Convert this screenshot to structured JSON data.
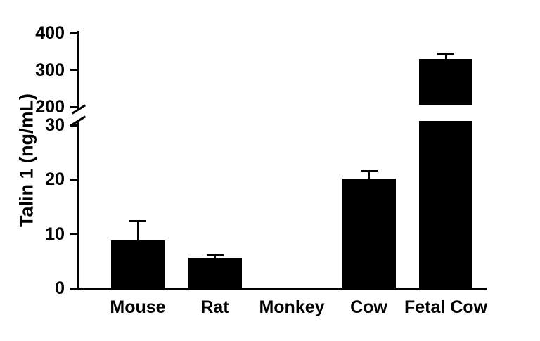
{
  "chart_data": {
    "type": "bar",
    "title": "",
    "ylabel": "Talin 1 (ng/mL)",
    "xlabel": "",
    "categories": [
      "Mouse",
      "Rat",
      "Monkey",
      "Cow",
      "Fetal Cow"
    ],
    "values": [
      8.8,
      5.5,
      0,
      20.2,
      330
    ],
    "errors_upper": [
      3.5,
      0.7,
      0,
      1.3,
      13
    ],
    "bar_color": "#000000",
    "axis_color": "#000000",
    "grid": false,
    "legend": null,
    "axis_break": {
      "lower_range": [
        0,
        30
      ],
      "upper_range": [
        200,
        400
      ],
      "lower_ticks": [
        0,
        10,
        20,
        30
      ],
      "upper_ticks": [
        200,
        300,
        400
      ]
    }
  }
}
